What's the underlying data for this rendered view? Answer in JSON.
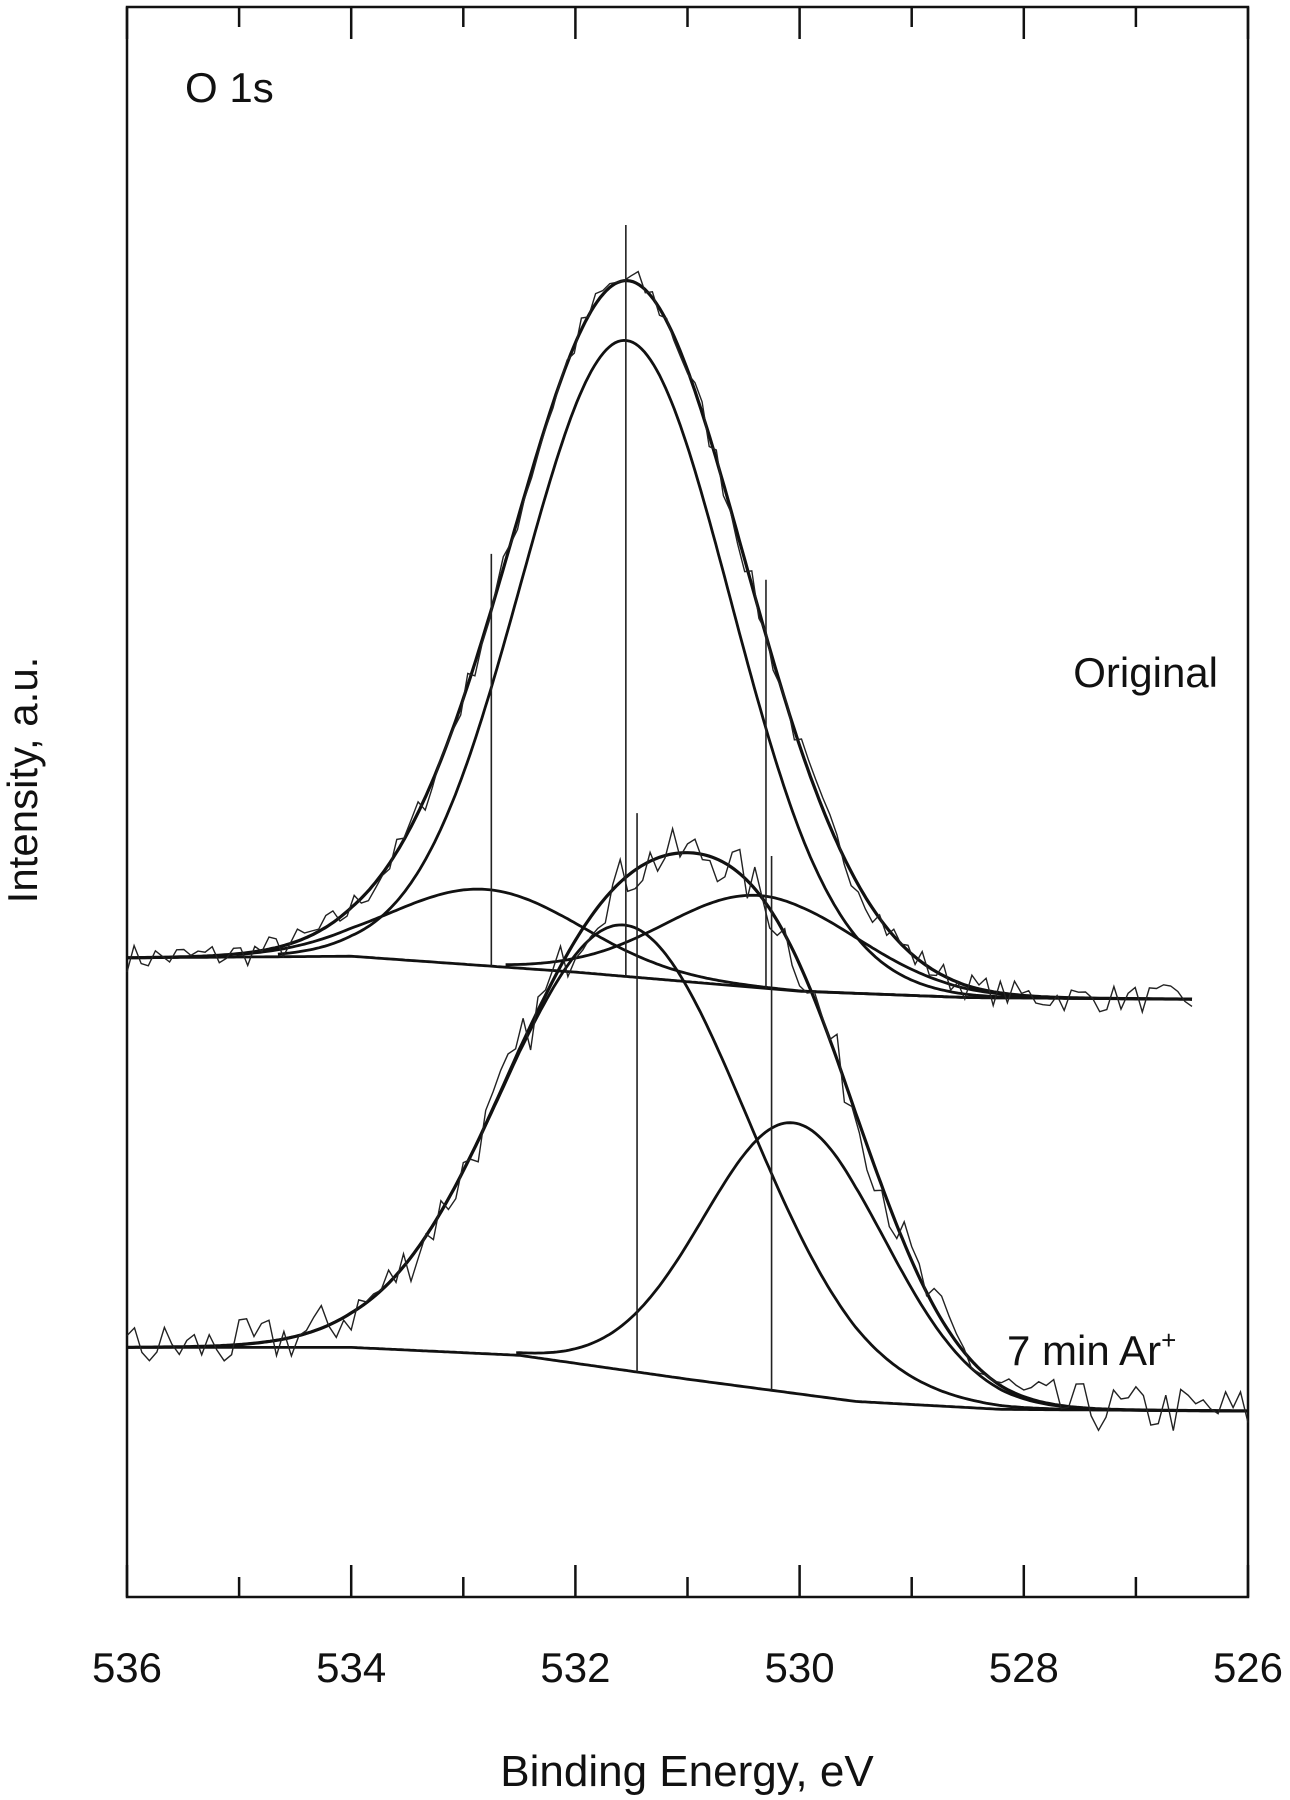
{
  "chart_data": {
    "type": "line",
    "title": "",
    "xlabel": "Binding Energy, eV",
    "ylabel": "Intensity, a.u.",
    "xlim": [
      536,
      526
    ],
    "x_reversed": true,
    "x_ticks": [
      536,
      534,
      532,
      530,
      528,
      526
    ],
    "ylim": [
      0,
      1
    ],
    "grid": false,
    "annotations": {
      "core_level": "O 1s",
      "spectrum_labels": [
        "Original",
        "7 min Ar",
        "+"
      ]
    },
    "panels": [
      {
        "name": "Original",
        "background": {
          "x": [
            536,
            534,
            532,
            530,
            528.5,
            526.5
          ],
          "y": [
            0.402,
            0.403,
            0.393,
            0.381,
            0.377,
            0.376
          ]
        },
        "components": [
          {
            "center": 531.55,
            "height": 0.4,
            "fwhm": 2.2
          },
          {
            "center": 532.8,
            "height": 0.048,
            "fwhm": 2.0
          },
          {
            "center": 530.35,
            "height": 0.058,
            "fwhm": 2.0
          }
        ],
        "peak_markers": [
          531.55,
          532.75,
          530.3
        ],
        "raw_noise_range": [
          536,
          526.5
        ]
      },
      {
        "name": "7 min Ar+",
        "background": {
          "x": [
            536,
            534,
            532.5,
            531,
            529.5,
            528.2,
            526
          ],
          "y": [
            0.157,
            0.157,
            0.152,
            0.137,
            0.123,
            0.118,
            0.117
          ]
        },
        "components": [
          {
            "center": 531.55,
            "height": 0.28,
            "fwhm": 2.55
          },
          {
            "center": 530.05,
            "height": 0.17,
            "fwhm": 1.9
          }
        ],
        "peak_markers": [
          531.45,
          530.25
        ],
        "raw_noise_range": [
          536,
          526
        ]
      }
    ]
  }
}
